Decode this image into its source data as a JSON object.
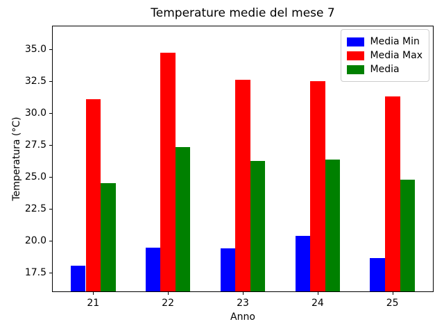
{
  "figure": {
    "title": "Temperature medie del mese 7",
    "xlabel": "Anno",
    "ylabel": "Temperatura (°C)"
  },
  "legend": {
    "position": "upper right",
    "items": [
      {
        "label": "Media Min",
        "color": "#0000ff"
      },
      {
        "label": "Media Max",
        "color": "#ff0000"
      },
      {
        "label": "Media",
        "color": "#008000"
      }
    ]
  },
  "chart_data": {
    "type": "bar",
    "title": "Temperature medie del mese 7",
    "xlabel": "Anno",
    "ylabel": "Temperatura (°C)",
    "categories": [
      "21",
      "22",
      "23",
      "24",
      "25"
    ],
    "series": [
      {
        "name": "Media Min",
        "color": "#0000ff",
        "values": [
          18.05,
          19.45,
          19.4,
          20.4,
          18.65
        ]
      },
      {
        "name": "Media Max",
        "color": "#ff0000",
        "values": [
          31.1,
          34.75,
          32.6,
          32.5,
          31.3
        ]
      },
      {
        "name": "Media",
        "color": "#008000",
        "values": [
          24.55,
          27.35,
          26.25,
          26.35,
          24.8
        ]
      }
    ],
    "ylim": [
      16.05,
      36.8
    ],
    "yticks": [
      17.5,
      20.0,
      22.5,
      25.0,
      27.5,
      30.0,
      32.5,
      35.0
    ],
    "ytick_labels": [
      "17.5",
      "20.0",
      "22.5",
      "25.0",
      "27.5",
      "30.0",
      "32.5",
      "35.0"
    ],
    "bar_width_fraction": 0.2,
    "legend_position": "upper right",
    "grid": false
  }
}
